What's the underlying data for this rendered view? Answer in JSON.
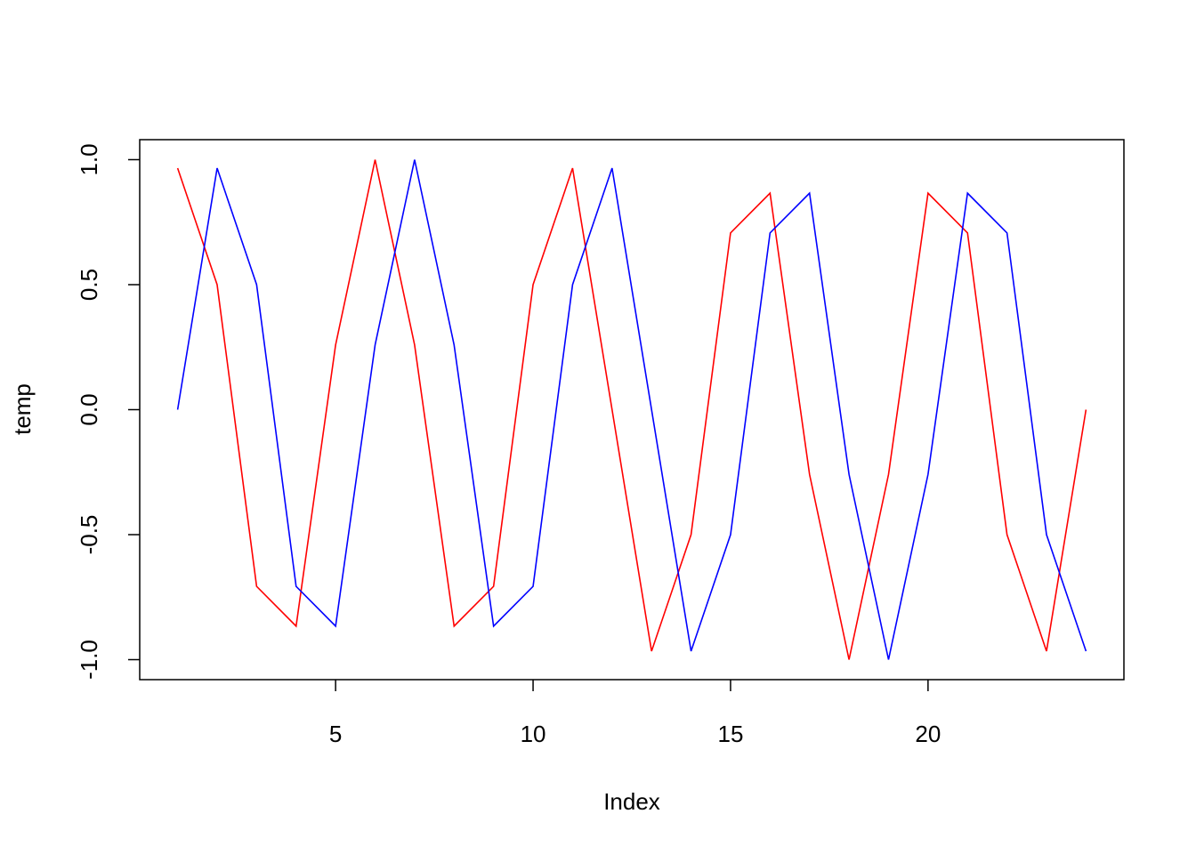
{
  "chart_data": {
    "type": "line",
    "xlabel": "Index",
    "ylabel": "temp",
    "xlim": [
      0.04,
      24.96
    ],
    "ylim": [
      -1.08,
      1.08
    ],
    "x_ticks": [
      5,
      10,
      15,
      20
    ],
    "y_ticks": [
      -1.0,
      -0.5,
      0.0,
      0.5,
      1.0
    ],
    "x_tick_labels": [
      "5",
      "10",
      "15",
      "20"
    ],
    "y_tick_labels": [
      "-1.0",
      "-0.5",
      "0.0",
      "0.5",
      "1.0"
    ],
    "grid": false,
    "x": [
      1,
      2,
      3,
      4,
      5,
      6,
      7,
      8,
      9,
      10,
      11,
      12,
      13,
      14,
      15,
      16,
      17,
      18,
      19,
      20,
      21,
      22,
      23,
      24
    ],
    "series": [
      {
        "color": "#ff0000",
        "values": [
          0.966,
          0.5,
          -0.707,
          -0.866,
          0.259,
          1.0,
          0.259,
          -0.866,
          -0.707,
          0.5,
          0.966,
          0.0,
          -0.966,
          -0.5,
          0.707,
          0.866,
          -0.259,
          -1.0,
          -0.259,
          0.866,
          0.707,
          -0.5,
          -0.966,
          0.0
        ]
      },
      {
        "color": "#0000ff",
        "values": [
          0.0,
          0.966,
          0.5,
          -0.707,
          -0.866,
          0.259,
          1.0,
          0.259,
          -0.866,
          -0.707,
          0.5,
          0.966,
          0.0,
          -0.966,
          -0.5,
          0.707,
          0.866,
          -0.259,
          -1.0,
          -0.259,
          0.866,
          0.707,
          -0.5,
          -0.966
        ]
      }
    ]
  }
}
